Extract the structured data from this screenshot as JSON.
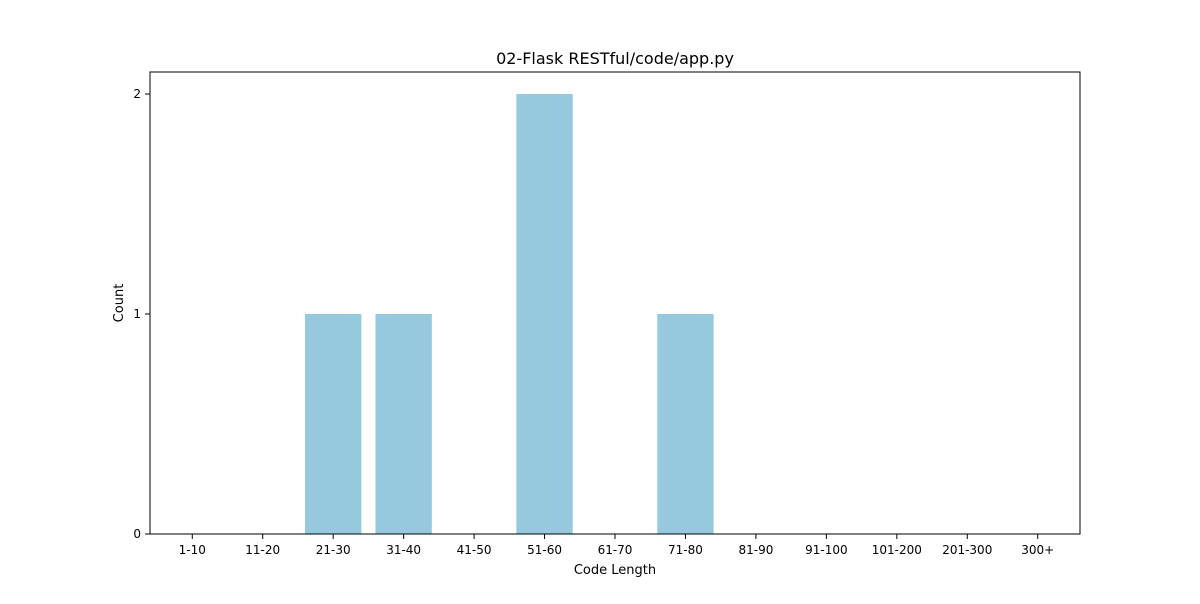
{
  "chart_data": {
    "type": "bar",
    "title": "02-Flask RESTful/code/app.py",
    "xlabel": "Code Length",
    "ylabel": "Count",
    "categories": [
      "1-10",
      "11-20",
      "21-30",
      "31-40",
      "41-50",
      "51-60",
      "61-70",
      "71-80",
      "81-90",
      "91-100",
      "101-200",
      "201-300",
      "300+"
    ],
    "values": [
      0,
      0,
      1,
      1,
      0,
      2,
      0,
      1,
      0,
      0,
      0,
      0,
      0
    ],
    "ylim": [
      0,
      2.1
    ],
    "yticks": [
      0,
      1,
      2
    ],
    "bar_color": "#96c9de",
    "grid": false,
    "legend": "none"
  }
}
